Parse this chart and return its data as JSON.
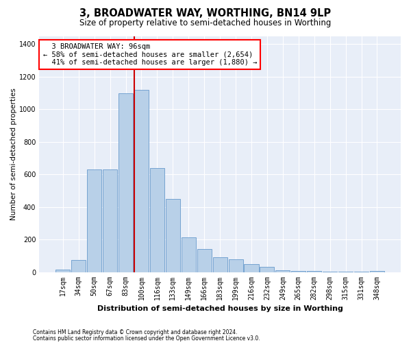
{
  "title": "3, BROADWATER WAY, WORTHING, BN14 9LP",
  "subtitle": "Size of property relative to semi-detached houses in Worthing",
  "xlabel": "Distribution of semi-detached houses by size in Worthing",
  "ylabel": "Number of semi-detached properties",
  "footnote1": "Contains HM Land Registry data © Crown copyright and database right 2024.",
  "footnote2": "Contains public sector information licensed under the Open Government Licence v3.0.",
  "annotation_line1": "  3 BROADWATER WAY: 96sqm",
  "annotation_line2": "← 58% of semi-detached houses are smaller (2,654)",
  "annotation_line3": "  41% of semi-detached houses are larger (1,880) →",
  "bar_color": "#b8d0e8",
  "bar_edge_color": "#6699cc",
  "redline_color": "#cc0000",
  "background_color": "#e8eef8",
  "grid_color": "#ffffff",
  "categories": [
    "17sqm",
    "34sqm",
    "50sqm",
    "67sqm",
    "83sqm",
    "100sqm",
    "116sqm",
    "133sqm",
    "149sqm",
    "166sqm",
    "183sqm",
    "199sqm",
    "216sqm",
    "232sqm",
    "249sqm",
    "265sqm",
    "282sqm",
    "298sqm",
    "315sqm",
    "331sqm",
    "348sqm"
  ],
  "values": [
    15,
    75,
    630,
    630,
    1100,
    1120,
    640,
    450,
    215,
    140,
    90,
    80,
    50,
    30,
    10,
    5,
    5,
    2,
    2,
    1,
    5
  ],
  "redline_index": 5,
  "ylim": [
    0,
    1450
  ],
  "yticks": [
    0,
    200,
    400,
    600,
    800,
    1000,
    1200,
    1400
  ],
  "title_fontsize": 10.5,
  "subtitle_fontsize": 8.5,
  "ylabel_fontsize": 7.5,
  "xlabel_fontsize": 8,
  "tick_fontsize": 7,
  "annot_fontsize": 7.5
}
